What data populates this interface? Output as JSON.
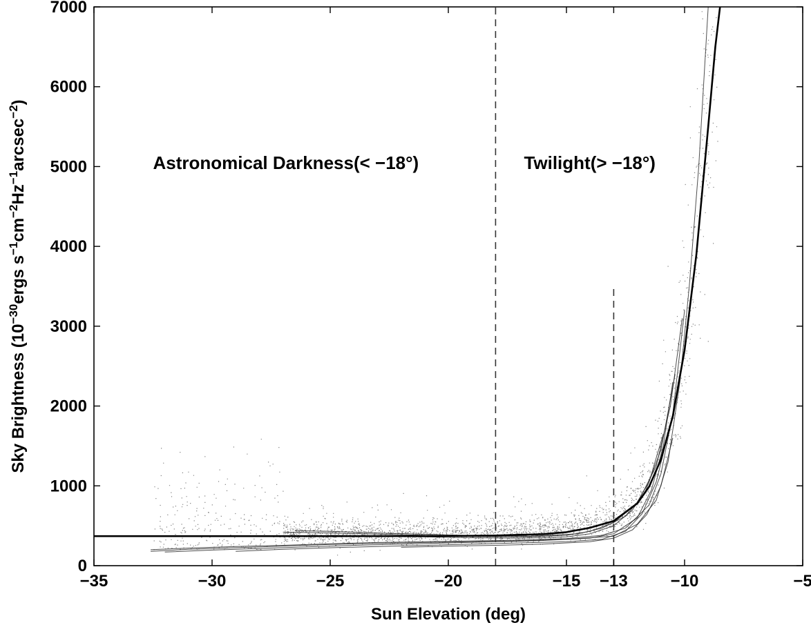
{
  "chart_data": {
    "type": "scatter",
    "xlabel": "Sun Elevation (deg)",
    "ylabel_parts": [
      "Sky Brightness (10",
      "−30",
      "ergs s",
      "−1",
      "cm",
      "−2",
      "Hz",
      "−1",
      "arcsec",
      "−2",
      ")"
    ],
    "xlim": [
      -35,
      -5
    ],
    "ylim": [
      0,
      7000
    ],
    "x_ticks": [
      -35,
      -30,
      -25,
      -20,
      -15,
      -13,
      -10,
      -5
    ],
    "x_tick_labels": [
      "−35",
      "−30",
      "−25",
      "−20",
      "−15",
      "−13",
      "−10",
      "−5"
    ],
    "y_ticks": [
      0,
      1000,
      2000,
      3000,
      4000,
      5000,
      6000,
      7000
    ],
    "y_tick_labels": [
      "0",
      "1000",
      "2000",
      "3000",
      "4000",
      "5000",
      "6000",
      "7000"
    ],
    "grid": false,
    "annotations": [
      {
        "text": "Astronomical Darkness(< −18°)",
        "x": -32.5,
        "y": 4970
      },
      {
        "text": "Twilight(> −18°)",
        "x": -16.8,
        "y": 4970
      }
    ],
    "reference_lines": [
      {
        "orientation": "vertical",
        "x": -18,
        "y_range": [
          0,
          7000
        ],
        "style": "dashed"
      },
      {
        "orientation": "vertical",
        "x": -13,
        "y_range": [
          0,
          3500
        ],
        "style": "dashed"
      }
    ],
    "fit_curve": {
      "style": "solid-thick",
      "points": [
        [
          -35,
          370
        ],
        [
          -30,
          370
        ],
        [
          -25,
          370
        ],
        [
          -20,
          372
        ],
        [
          -18,
          378
        ],
        [
          -16,
          395
        ],
        [
          -15,
          420
        ],
        [
          -14,
          475
        ],
        [
          -13,
          560
        ],
        [
          -12,
          780
        ],
        [
          -11.5,
          990
        ],
        [
          -11,
          1330
        ],
        [
          -10.5,
          1870
        ],
        [
          -10,
          2700
        ],
        [
          -9.5,
          3900
        ],
        [
          -9,
          5500
        ],
        [
          -8.7,
          6500
        ],
        [
          -8.5,
          7000
        ]
      ]
    },
    "series": [
      {
        "values_xy": [
          [
            -32.6,
            180
          ],
          [
            -31,
            205
          ],
          [
            -29,
            225
          ],
          [
            -27,
            245
          ],
          [
            -25,
            265
          ],
          [
            -23,
            280
          ],
          [
            -21,
            290
          ],
          [
            -19,
            300
          ],
          [
            -17,
            310
          ],
          [
            -15,
            330
          ],
          [
            -13,
            370
          ],
          [
            -12,
            520
          ],
          [
            -11.2,
            820
          ],
          [
            -10.7,
            1300
          ],
          [
            -10.2,
            2300
          ],
          [
            -9.8,
            3500
          ],
          [
            -9.4,
            5000
          ],
          [
            -9.0,
            7000
          ]
        ]
      },
      {
        "values_xy": [
          [
            -32.6,
            200
          ],
          [
            -31,
            220
          ],
          [
            -29,
            240
          ],
          [
            -27,
            255
          ],
          [
            -25,
            275
          ],
          [
            -23,
            290
          ],
          [
            -21,
            300
          ],
          [
            -19,
            310
          ],
          [
            -17,
            320
          ],
          [
            -15,
            340
          ],
          [
            -13.5,
            380
          ],
          [
            -12.5,
            470
          ],
          [
            -11.5,
            760
          ],
          [
            -11,
            1150
          ],
          [
            -10.5,
            1900
          ],
          [
            -10,
            3200
          ]
        ]
      },
      {
        "values_xy": [
          [
            -32,
            170
          ],
          [
            -30,
            195
          ],
          [
            -28,
            215
          ],
          [
            -26,
            235
          ],
          [
            -24,
            255
          ],
          [
            -22,
            270
          ],
          [
            -20,
            285
          ],
          [
            -18,
            300
          ],
          [
            -16,
            315
          ],
          [
            -14,
            345
          ],
          [
            -13,
            400
          ],
          [
            -12,
            600
          ],
          [
            -11.4,
            950
          ],
          [
            -10.9,
            1500
          ],
          [
            -10.5,
            2300
          ]
        ]
      },
      {
        "values_xy": [
          [
            -29,
            180
          ],
          [
            -27,
            205
          ],
          [
            -25,
            225
          ],
          [
            -23,
            240
          ],
          [
            -21,
            255
          ],
          [
            -19,
            270
          ],
          [
            -17,
            285
          ],
          [
            -15,
            300
          ],
          [
            -13.5,
            330
          ],
          [
            -12.5,
            430
          ],
          [
            -11.8,
            650
          ],
          [
            -11.2,
            1050
          ],
          [
            -10.7,
            1650
          ]
        ]
      },
      {
        "values_xy": [
          [
            -27,
            420
          ],
          [
            -25,
            410
          ],
          [
            -23,
            395
          ],
          [
            -21,
            380
          ],
          [
            -19,
            365
          ],
          [
            -17,
            360
          ],
          [
            -15,
            380
          ],
          [
            -14,
            430
          ],
          [
            -13,
            540
          ],
          [
            -12,
            780
          ],
          [
            -11.2,
            1250
          ],
          [
            -10.6,
            2000
          ],
          [
            -10.1,
            3100
          ]
        ]
      },
      {
        "values_xy": [
          [
            -26.5,
            440
          ],
          [
            -24.5,
            425
          ],
          [
            -22.5,
            405
          ],
          [
            -20.5,
            390
          ],
          [
            -18.5,
            375
          ],
          [
            -16.5,
            370
          ],
          [
            -14.5,
            400
          ],
          [
            -13.5,
            470
          ],
          [
            -12.5,
            620
          ],
          [
            -11.7,
            900
          ],
          [
            -11,
            1450
          ],
          [
            -10.4,
            2400
          ]
        ]
      },
      {
        "values_xy": [
          [
            -25,
            380
          ],
          [
            -23,
            370
          ],
          [
            -21,
            360
          ],
          [
            -19,
            350
          ],
          [
            -17,
            345
          ],
          [
            -15,
            360
          ],
          [
            -14,
            400
          ],
          [
            -13,
            500
          ],
          [
            -12.2,
            700
          ],
          [
            -11.5,
            1050
          ],
          [
            -10.9,
            1650
          ]
        ]
      },
      {
        "values_xy": [
          [
            -22,
            230
          ],
          [
            -20,
            245
          ],
          [
            -18,
            255
          ],
          [
            -16,
            270
          ],
          [
            -14,
            300
          ],
          [
            -13,
            345
          ],
          [
            -12.2,
            450
          ],
          [
            -11.6,
            640
          ],
          [
            -11,
            1000
          ],
          [
            -10.5,
            1600
          ]
        ]
      }
    ]
  }
}
